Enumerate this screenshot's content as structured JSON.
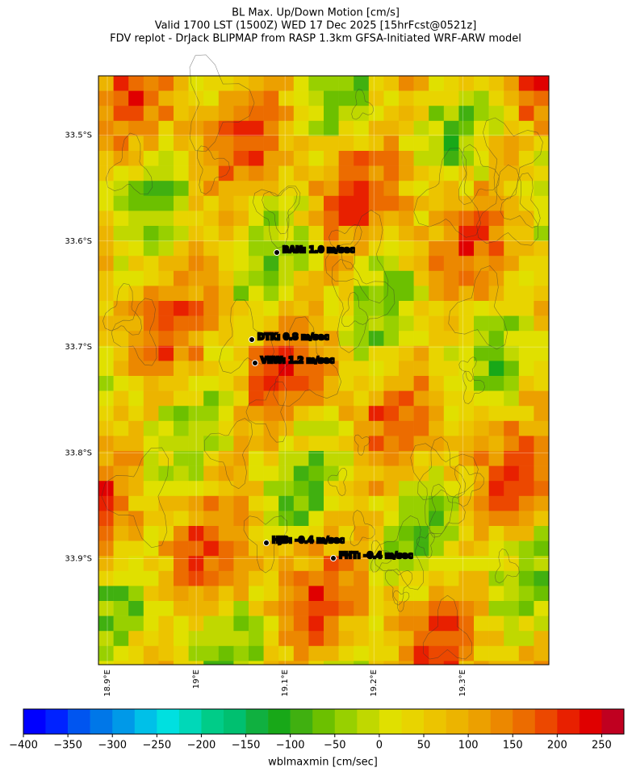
{
  "chart_data": {
    "type": "map",
    "title": [
      "BL Max. Up/Down Motion [cm/s]",
      "Valid 1700 LST (1500Z) WED 17 Dec 2025 [15hrFcst@0521z]",
      "FDV replot - DrJack BLIPMAP from RASP 1.3km GFSA-Initiated WRF-ARW model"
    ],
    "xlim": [
      18.89,
      19.397
    ],
    "ylim": [
      -34.0,
      -33.444
    ],
    "xticks": [
      {
        "value": 18.9,
        "label": "18.9°E"
      },
      {
        "value": 19.0,
        "label": "19°E"
      },
      {
        "value": 19.1,
        "label": "19.1°E"
      },
      {
        "value": 19.2,
        "label": "19.2°E"
      },
      {
        "value": 19.3,
        "label": "19.3°E"
      }
    ],
    "yticks": [
      {
        "value": -33.5,
        "label": "33.5°S"
      },
      {
        "value": -33.6,
        "label": "33.6°S"
      },
      {
        "value": -33.7,
        "label": "33.7°S"
      },
      {
        "value": -33.8,
        "label": "33.8°S"
      },
      {
        "value": -33.9,
        "label": "33.9°S"
      }
    ],
    "stations": [
      "BAN: 1.0 m/sec",
      "DTK: 0.8 m/sec",
      "VEW: 1.2 m/sec",
      "HJB: -0.4 m/sec",
      "FHT: -0.4 m/sec"
    ],
    "colorbar": {
      "label": "wblmaxmin [cm/sec]",
      "lim": [
        -400,
        275
      ],
      "ticks": [
        {
          "value": -400,
          "label": "−400"
        },
        {
          "value": -350,
          "label": "−350"
        },
        {
          "value": -300,
          "label": "−300"
        },
        {
          "value": -250,
          "label": "−250"
        },
        {
          "value": -200,
          "label": "−200"
        },
        {
          "value": -150,
          "label": "−150"
        },
        {
          "value": -100,
          "label": "−100"
        },
        {
          "value": -50,
          "label": "−50"
        },
        0,
        50,
        100,
        150,
        200,
        250
      ],
      "colors": [
        "#0000ff",
        "#0022ff",
        "#0055f0",
        "#0077e8",
        "#0099e8",
        "#00c0e8",
        "#00e0e0",
        "#00d8b8",
        "#00cc88",
        "#00c070",
        "#10b040",
        "#18a818",
        "#40b010",
        "#6cc000",
        "#98d000",
        "#c0d800",
        "#e0e000",
        "#e8d400",
        "#ecc400",
        "#ecb400",
        "#eca000",
        "#ec8800",
        "#ec6c00",
        "#ec4800",
        "#e82000",
        "#e00000",
        "#c00020"
      ]
    }
  }
}
